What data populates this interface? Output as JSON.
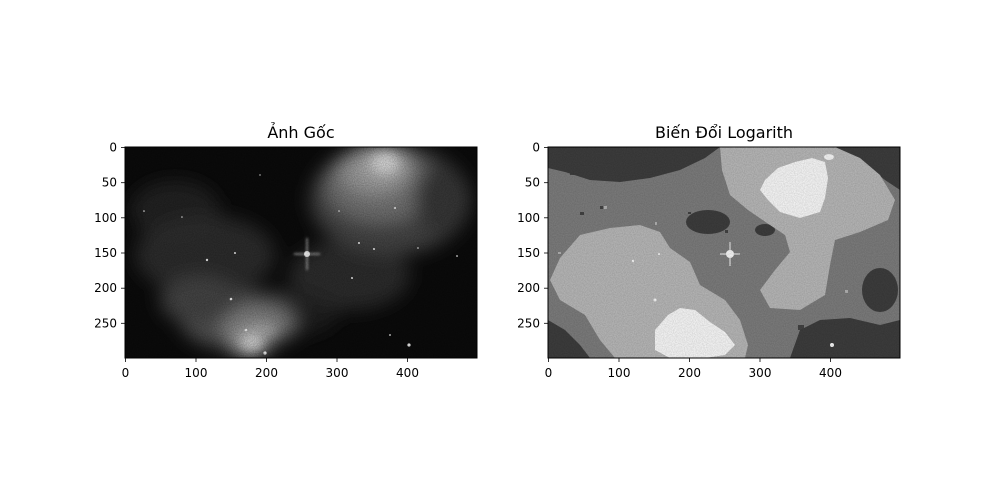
{
  "figure": {
    "background": "#ffffff"
  },
  "chart_data": [
    {
      "type": "heatmap",
      "title": "Ảnh Gốc",
      "colormap": "gray",
      "image_shape": [
        300,
        500
      ],
      "xlim": [
        0,
        500
      ],
      "ylim": [
        300,
        0
      ],
      "xticks": [
        0,
        100,
        200,
        300,
        400
      ],
      "yticks": [
        0,
        50,
        100,
        150,
        200,
        250
      ],
      "xlabel": "",
      "ylabel": "",
      "grid": false,
      "content": "astronomical nebula image: bright gas cloud upper-right, bright region lower-left, dark background, bright star near (258,152)"
    },
    {
      "type": "heatmap",
      "title": "Biến Đổi Logarith",
      "colormap": "gray",
      "image_shape": [
        300,
        500
      ],
      "xlim": [
        0,
        500
      ],
      "ylim": [
        300,
        0
      ],
      "xticks": [
        0,
        100,
        200,
        300,
        400
      ],
      "yticks": [
        0,
        50,
        100,
        150,
        200,
        250
      ],
      "xlabel": "",
      "ylabel": "",
      "grid": false,
      "content": "posterized log transform of the same image with four gray levels: dark gray, mid gray, light gray, white",
      "levels": [
        "#3c3c3c",
        "#808080",
        "#bcbcbc",
        "#ffffff"
      ]
    }
  ]
}
